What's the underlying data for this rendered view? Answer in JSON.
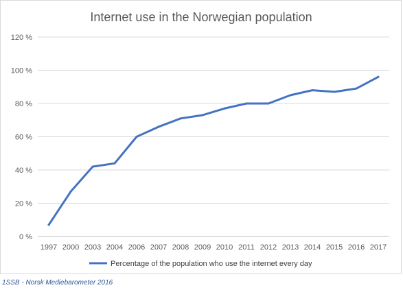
{
  "chart_data": {
    "type": "line",
    "title": "Internet use in the Norwegian population",
    "xlabel": "",
    "ylabel": "",
    "categories": [
      "1997",
      "2000",
      "2003",
      "2004",
      "2006",
      "2007",
      "2008",
      "2009",
      "2010",
      "2011",
      "2012",
      "2013",
      "2014",
      "2015",
      "2016",
      "2017"
    ],
    "series": [
      {
        "name": "Percentage of the population who use the internet every day",
        "values": [
          7,
          27,
          42,
          44,
          60,
          66,
          71,
          73,
          77,
          80,
          80,
          85,
          88,
          87,
          89,
          96
        ],
        "color": "#4472c4"
      }
    ],
    "ylim": [
      0,
      120
    ],
    "yticks": [
      0,
      20,
      40,
      60,
      80,
      100,
      120
    ],
    "ytick_labels": [
      "0 %",
      "20 %",
      "40 %",
      "60 %",
      "80 %",
      "100 %",
      "120 %"
    ],
    "grid": true,
    "legend_position": "bottom"
  },
  "source_note": "1SSB - Norsk Mediebarometer 2016",
  "colors": {
    "grid": "#d9d9d9",
    "axis": "#bfbfbf",
    "series": "#4472c4"
  }
}
